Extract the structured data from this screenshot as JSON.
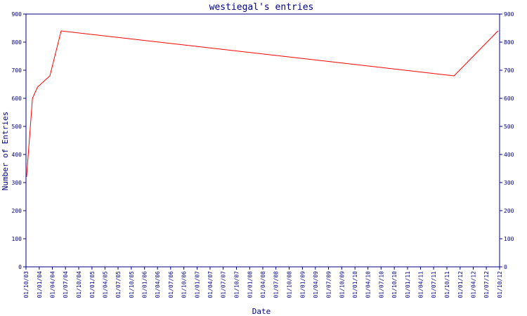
{
  "chart_data": {
    "type": "line",
    "title": "westiegal's entries",
    "xlabel": "Date",
    "ylabel": "Number of Entries",
    "ylim": [
      0,
      900
    ],
    "yticks": [
      0,
      100,
      200,
      300,
      400,
      500,
      600,
      700,
      800,
      900
    ],
    "right_axis": true,
    "grid": false,
    "x_tick_labels": [
      "01/10/03",
      "01/01/04",
      "01/04/04",
      "01/07/04",
      "01/10/04",
      "01/01/05",
      "01/04/05",
      "01/07/05",
      "01/10/05",
      "01/01/06",
      "01/04/06",
      "01/07/06",
      "01/10/06",
      "01/01/07",
      "01/04/07",
      "01/07/07",
      "01/10/07",
      "01/01/08",
      "01/04/08",
      "01/07/08",
      "01/10/08",
      "01/01/09",
      "01/04/09",
      "01/07/09",
      "01/10/09",
      "01/01/10",
      "01/04/10",
      "01/07/10",
      "01/10/10",
      "01/01/11",
      "01/04/11",
      "01/07/11",
      "01/10/11",
      "01/01/12",
      "01/04/12",
      "01/07/12",
      "01/10/12"
    ],
    "series": [
      {
        "color": "#ff0000",
        "points": [
          {
            "x": "2003-10-05",
            "y": 320
          },
          {
            "x": "2003-11-15",
            "y": 600
          },
          {
            "x": "2003-12-20",
            "y": 640
          },
          {
            "x": "2004-03-15",
            "y": 680
          },
          {
            "x": "2004-06-01",
            "y": 840
          },
          {
            "x": "2011-11-20",
            "y": 680
          },
          {
            "x": "2012-09-20",
            "y": 840
          }
        ]
      }
    ]
  },
  "colors": {
    "axis": "#000080",
    "text": "#000080",
    "line": "#ff0000"
  }
}
